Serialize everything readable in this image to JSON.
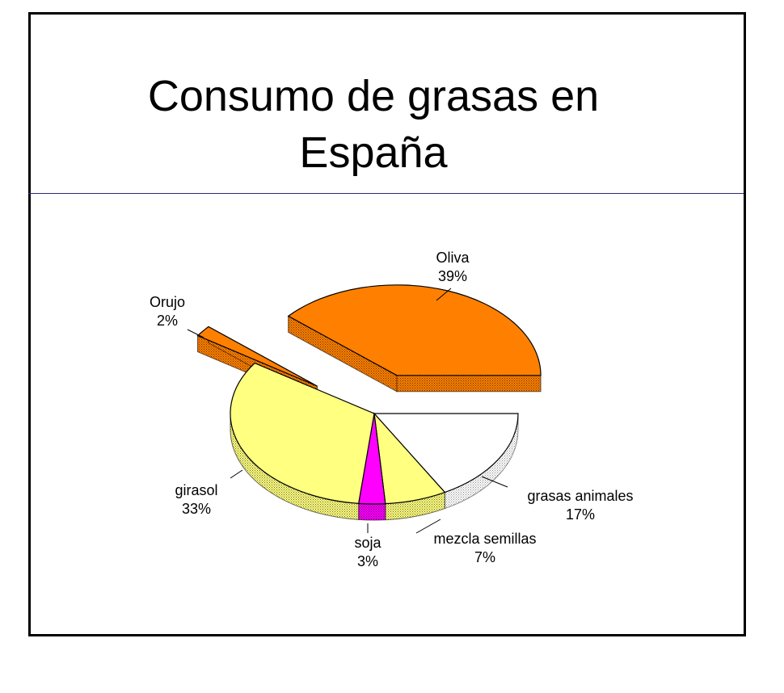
{
  "chart_data": {
    "type": "pie3d",
    "title": "Consumo de grasas en España",
    "categories": [
      "grasas animales",
      "mezcla semillas",
      "soja",
      "girasol",
      "Orujo",
      "Oliva"
    ],
    "values": [
      17,
      7,
      3,
      33,
      2,
      39
    ],
    "value_labels": [
      "17%",
      "7%",
      "3%",
      "33%",
      "2%",
      "39%"
    ],
    "colors": [
      "#ffffff",
      "#ffff80",
      "#ff00ff",
      "#ffff80",
      "#ff8000",
      "#ff8000"
    ]
  }
}
